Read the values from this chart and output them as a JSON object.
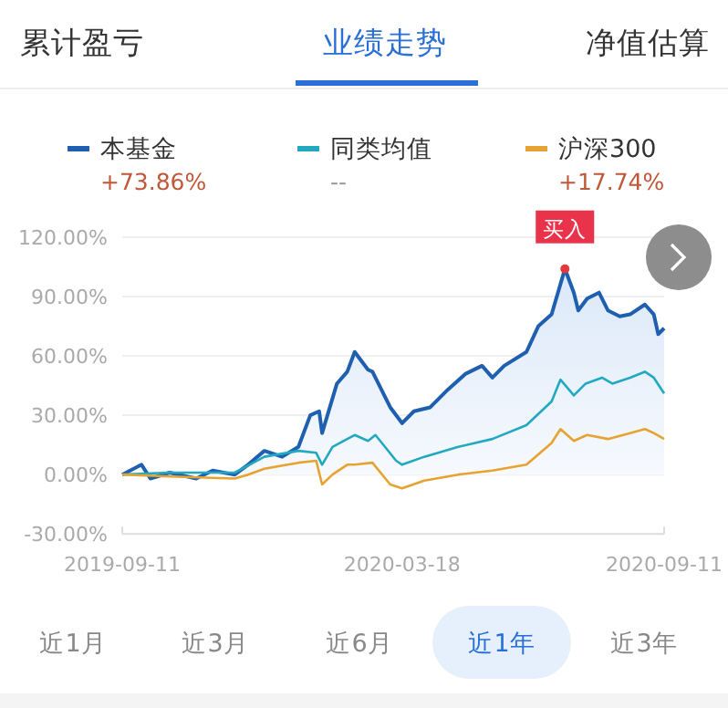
{
  "chart_data": {
    "type": "line",
    "annotations": [
      "累计盈亏",
      "业绩走势",
      "净值估算",
      "+73.86%",
      "--",
      "+17.74%",
      "近1月",
      "近3月",
      "近6月",
      "近1年",
      "近3年",
      {
        "text": "买入",
        "x": "2020-07-06",
        "y": 104
      }
    ],
    "xlim": [
      "2019-09-11",
      "2020-09-11"
    ],
    "xticks": [
      "2019-09-11",
      "2020-03-18",
      "2020-09-11"
    ],
    "ylim": [
      -30,
      120
    ],
    "yticks": [
      {
        "value": -30,
        "label": "-30.00%"
      },
      {
        "value": 0,
        "label": "0.00%"
      },
      {
        "value": 30,
        "label": "30.00%"
      },
      {
        "value": 60,
        "label": "60.00%"
      },
      {
        "value": 90,
        "label": "90.00%"
      },
      {
        "value": 120,
        "label": "120.00%"
      }
    ],
    "grid": "y",
    "legend": "top",
    "series": [
      {
        "name": "本基金",
        "type": "area",
        "color": "#1f5fb0",
        "x": [
          "2019-09-11",
          "2019-09-24",
          "2019-09-30",
          "2019-10-13",
          "2019-10-31",
          "2019-11-11",
          "2019-11-26",
          "2019-12-05",
          "2019-12-16",
          "2019-12-28",
          "2020-01-08",
          "2020-01-16",
          "2020-01-22",
          "2020-01-24",
          "2020-02-03",
          "2020-02-10",
          "2020-02-15",
          "2020-02-24",
          "2020-02-27",
          "2020-03-10",
          "2020-03-18",
          "2020-03-26",
          "2020-04-06",
          "2020-04-18",
          "2020-04-30",
          "2020-05-11",
          "2020-05-18",
          "2020-05-26",
          "2020-06-10",
          "2020-06-18",
          "2020-06-27",
          "2020-07-06",
          "2020-07-12",
          "2020-07-15",
          "2020-07-21",
          "2020-07-29",
          "2020-08-04",
          "2020-08-12",
          "2020-08-19",
          "2020-08-29",
          "2020-09-04",
          "2020-09-07",
          "2020-09-11"
        ],
        "values": [
          0,
          5,
          -2,
          1,
          -2,
          2,
          0,
          5,
          12,
          9,
          14,
          30,
          32,
          21,
          46,
          52,
          62,
          53,
          52,
          34,
          26,
          32,
          34,
          43,
          51,
          55,
          49,
          55,
          62,
          75,
          81,
          104,
          92,
          83,
          89,
          92,
          83,
          80,
          81,
          86,
          81,
          71,
          74
        ]
      },
      {
        "name": "同类均值",
        "color": "#22a9c2",
        "x": [
          "2019-09-11",
          "2019-10-13",
          "2019-11-26",
          "2019-12-16",
          "2020-01-08",
          "2020-01-20",
          "2020-01-24",
          "2020-01-31",
          "2020-02-10",
          "2020-02-15",
          "2020-02-24",
          "2020-02-29",
          "2020-03-14",
          "2020-03-18",
          "2020-04-02",
          "2020-04-25",
          "2020-05-18",
          "2020-06-10",
          "2020-06-27",
          "2020-07-03",
          "2020-07-12",
          "2020-07-20",
          "2020-07-31",
          "2020-08-07",
          "2020-08-19",
          "2020-08-29",
          "2020-09-04",
          "2020-09-11"
        ],
        "values": [
          0,
          1,
          1,
          9,
          12,
          11,
          5,
          14,
          18,
          20,
          17,
          20,
          7,
          5,
          9,
          14,
          18,
          25,
          37,
          48,
          40,
          46,
          49,
          46,
          49,
          52,
          49,
          41
        ]
      },
      {
        "name": "沪深300",
        "color": "#e6a332",
        "x": [
          "2019-09-11",
          "2019-10-13",
          "2019-11-26",
          "2019-12-05",
          "2019-12-16",
          "2020-01-08",
          "2020-01-20",
          "2020-01-24",
          "2020-01-31",
          "2020-02-10",
          "2020-02-15",
          "2020-02-27",
          "2020-03-10",
          "2020-03-18",
          "2020-04-02",
          "2020-04-25",
          "2020-05-18",
          "2020-06-10",
          "2020-06-27",
          "2020-07-03",
          "2020-07-12",
          "2020-07-21",
          "2020-08-04",
          "2020-08-19",
          "2020-08-29",
          "2020-09-04",
          "2020-09-11"
        ],
        "values": [
          0,
          -1,
          -2,
          0,
          3,
          6,
          7,
          -5,
          0,
          5,
          5,
          6,
          -5,
          -7,
          -3,
          0,
          2,
          5,
          16,
          23,
          17,
          20,
          18,
          21,
          23,
          21,
          18
        ]
      }
    ]
  }
}
